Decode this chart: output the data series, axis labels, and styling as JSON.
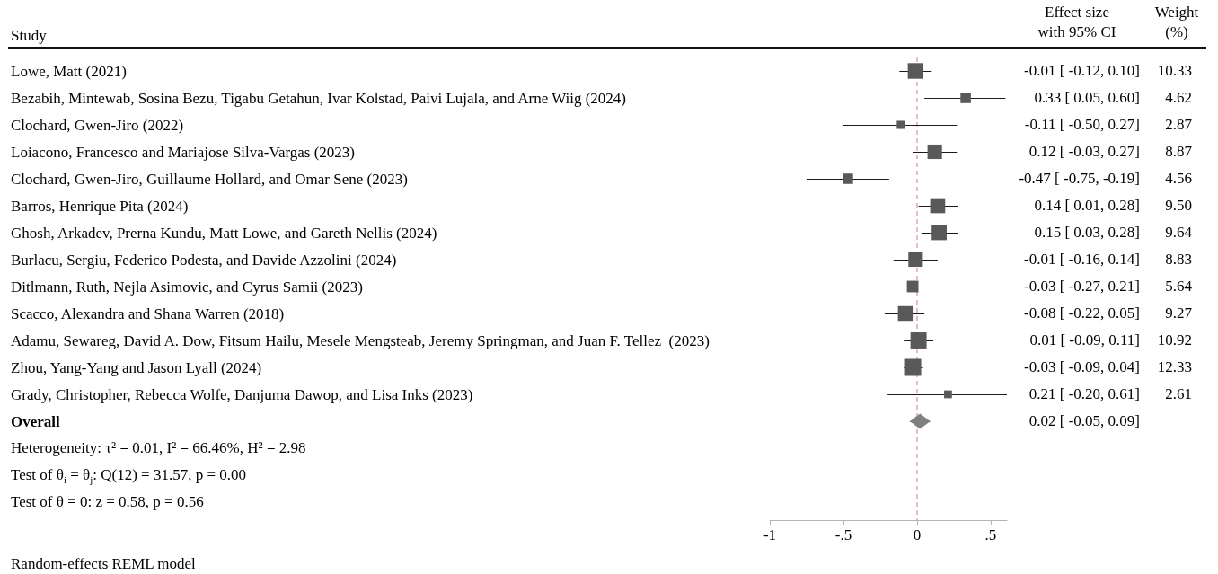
{
  "chart_data": {
    "type": "bubble",
    "orientation": "horizontal",
    "ylabel": "Study",
    "categories": [
      "Lowe, Matt (2021)",
      "Bezabih, Mintewab, Sosina Bezu, Tigabu Getahun, Ivar Kolstad, Paivi Lujala, and Arne Wiig (2024)",
      "Clochard, Gwen-Jiro (2022)",
      "Loiacono, Francesco and Mariajose Silva-Vargas (2023)",
      "Clochard, Gwen-Jiro, Guillaume Hollard, and Omar Sene (2023)",
      "Barros, Henrique Pita (2024)",
      "Ghosh, Arkadev, Prerna Kundu, Matt Lowe, and Gareth Nellis (2024)",
      "Burlacu, Sergiu, Federico Podesta, and Davide Azzolini (2024)",
      "Ditlmann, Ruth, Nejla Asimovic, and Cyrus Samii (2023)",
      "Scacco, Alexandra and Shana Warren (2018)",
      "Adamu, Sewareg, David A. Dow, Fitsum Hailu, Mesele Mengsteab, Jeremy Springman, and Juan F. Tellez  (2023)",
      "Zhou, Yang-Yang and Jason Lyall (2024)",
      "Grady, Christopher, Rebecca Wolfe, Danjuma Dawop, and Lisa Inks (2023)",
      "Overall"
    ],
    "series": [
      {
        "marker": "square",
        "color": "#595959",
        "values": [
          -0.01,
          0.33,
          -0.11,
          0.12,
          -0.47,
          0.14,
          0.15,
          -0.01,
          -0.03,
          -0.08,
          0.01,
          -0.03,
          0.21,
          null
        ],
        "errors": [
          [
            -0.12,
            0.1
          ],
          [
            0.05,
            0.6
          ],
          [
            -0.5,
            0.27
          ],
          [
            -0.03,
            0.27
          ],
          [
            -0.75,
            -0.19
          ],
          [
            0.01,
            0.28
          ],
          [
            0.03,
            0.28
          ],
          [
            -0.16,
            0.14
          ],
          [
            -0.27,
            0.21
          ],
          [
            -0.22,
            0.05
          ],
          [
            -0.09,
            0.11
          ],
          [
            -0.09,
            0.04
          ],
          [
            -0.2,
            0.61
          ],
          null
        ],
        "sizes": [
          0.84,
          0.37,
          0.23,
          0.72,
          0.37,
          0.77,
          0.78,
          0.72,
          0.46,
          0.75,
          0.89,
          1,
          0.21,
          null
        ],
        "value_labels": [
          "-0.01 [ -0.12, 0.10]",
          "0.33 [ 0.05, 0.60]",
          "-0.11 [ -0.50, 0.27]",
          "0.12 [ -0.03, 0.27]",
          "-0.47 [ -0.75, -0.19]",
          "0.14 [ 0.01, 0.28]",
          "0.15 [ 0.03, 0.28]",
          "-0.01 [ -0.16, 0.14]",
          "-0.03 [ -0.27, 0.21]",
          "-0.08 [ -0.22, 0.05]",
          "0.01 [ -0.09, 0.11]",
          "-0.03 [ -0.09, 0.04]",
          "0.21 [ -0.20, 0.61]",
          null
        ]
      },
      {
        "type": "scatter",
        "marker": "diamond",
        "color": "#808080",
        "values": [
          null,
          null,
          null,
          null,
          null,
          null,
          null,
          null,
          null,
          null,
          null,
          null,
          null,
          0.02
        ],
        "errors": [
          null,
          null,
          null,
          null,
          null,
          null,
          null,
          null,
          null,
          null,
          null,
          null,
          null,
          [
            -0.05,
            0.09
          ]
        ]
      }
    ],
    "xlim": [
      -1,
      0.61
    ],
    "xticks": [
      -1,
      {
        "value": -0.5,
        "label": "-.5"
      },
      0,
      {
        "value": 0.5,
        "label": ".5"
      }
    ],
    "ref_lines": [
      {
        "axis": "x",
        "value": 0,
        "color": "#e0a3c5",
        "line_style": "dashed"
      }
    ],
    "annotations": [
      "Effect size\nwith 95% CI",
      "Weight\n(%)",
      "10.33",
      "4.62",
      "2.87",
      "8.87",
      "4.56",
      "9.50",
      "9.64",
      "8.83",
      "5.64",
      "9.27",
      "10.92",
      "12.33",
      "2.61",
      "0.02 [ -0.05, 0.09]",
      "Heterogeneity: τ² = 0.01, I² = 66.46%, H² = 2.98",
      "Test of θ$_{i}$ = θ$_{j}$: Q(12) = 31.57, p = 0.00",
      "Test of θ = 0: z = 0.58, p = 0.56",
      "Random-effects REML model"
    ]
  }
}
